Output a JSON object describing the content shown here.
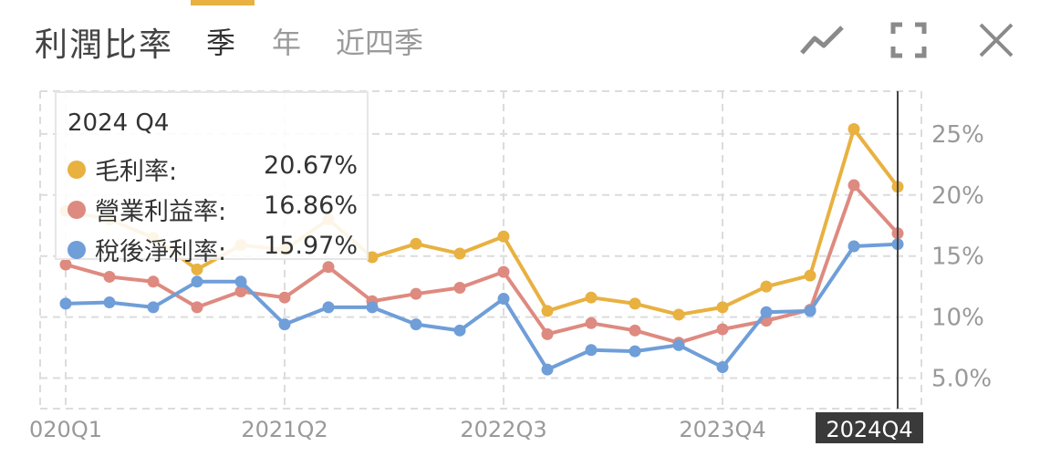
{
  "header": {
    "title": "利潤比率",
    "tabs": [
      {
        "label": "季",
        "active": true
      },
      {
        "label": "年",
        "active": false
      },
      {
        "label": "近四季",
        "active": false
      }
    ],
    "accent_color": "#e8b140",
    "controls": [
      "line-chart-icon",
      "fullscreen-icon",
      "close-icon"
    ]
  },
  "tooltip": {
    "title": "2024 Q4",
    "rows": [
      {
        "label": "毛利率:",
        "value": "20.67%",
        "color": "#e8b140"
      },
      {
        "label": "營業利益率:",
        "value": "16.86%",
        "color": "#de8a80"
      },
      {
        "label": "稅後淨利率:",
        "value": "15.97%",
        "color": "#6f9ed8"
      }
    ]
  },
  "chart_data": {
    "type": "line",
    "x": [
      "2020Q1",
      "2020Q2",
      "2020Q3",
      "2020Q4",
      "2021Q1",
      "2021Q2",
      "2021Q3",
      "2021Q4",
      "2022Q1",
      "2022Q2",
      "2022Q3",
      "2022Q4",
      "2023Q1",
      "2023Q2",
      "2023Q3",
      "2023Q4",
      "2024Q1",
      "2024Q2",
      "2024Q3",
      "2024Q4"
    ],
    "x_tick_labels": [
      "020Q1",
      "2021Q2",
      "2022Q3",
      "2023Q4"
    ],
    "x_tick_positions": [
      "2020Q1",
      "2021Q2",
      "2022Q3",
      "2023Q4"
    ],
    "highlight_label": "2024Q4",
    "highlight_index": 19,
    "y_tick_labels": [
      "5.0%",
      "10%",
      "15%",
      "20%",
      "25%"
    ],
    "y_tick_values": [
      5,
      10,
      15,
      20,
      25
    ],
    "ylim": [
      2.5,
      28.5
    ],
    "grid": true,
    "series": [
      {
        "name": "毛利率",
        "color": "#e8b140",
        "values": [
          18.7,
          18.0,
          16.5,
          13.9,
          15.9,
          15.5,
          18.0,
          14.9,
          16.0,
          15.2,
          16.6,
          10.5,
          11.6,
          11.1,
          10.2,
          10.8,
          12.5,
          13.4,
          25.4,
          20.67
        ]
      },
      {
        "name": "營業利益率",
        "color": "#de8a80",
        "values": [
          14.3,
          13.3,
          12.9,
          10.8,
          12.1,
          11.6,
          14.1,
          11.3,
          11.9,
          12.4,
          13.7,
          8.6,
          9.5,
          8.9,
          7.9,
          9.0,
          9.7,
          10.6,
          20.8,
          16.86
        ]
      },
      {
        "name": "稅後淨利率",
        "color": "#6f9ed8",
        "values": [
          11.1,
          11.2,
          10.8,
          12.9,
          12.9,
          9.4,
          10.8,
          10.8,
          9.4,
          8.9,
          11.5,
          5.7,
          7.3,
          7.2,
          7.7,
          5.9,
          10.4,
          10.5,
          15.8,
          15.97
        ]
      }
    ]
  }
}
